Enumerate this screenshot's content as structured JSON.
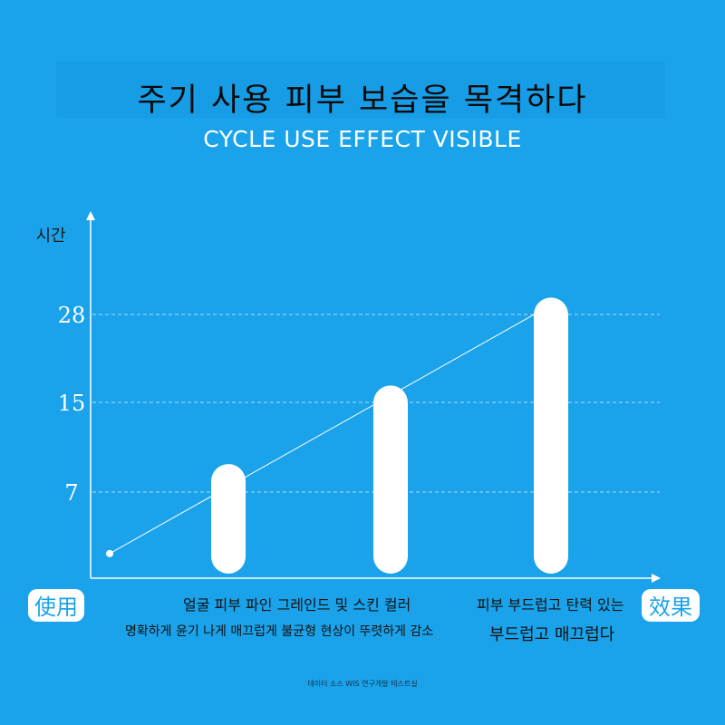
{
  "header": {
    "title": "주기 사용 피부 보습을 목격하다",
    "subtitle": "CYCLE USE EFFECT VISIBLE"
  },
  "chart_data": {
    "type": "bar",
    "ylabel": "시간",
    "xlabel_left": "使用",
    "xlabel_right": "效果",
    "y_ticks": [
      7,
      15,
      28
    ],
    "bars": [
      {
        "value": 9.5
      },
      {
        "value": 17.5
      },
      {
        "value": 30.5
      }
    ],
    "trend_line": [
      {
        "x": 0,
        "y": 2
      },
      {
        "x": 3,
        "y": 28.5
      }
    ],
    "grid": "dashed-horizontal",
    "colors": {
      "bar": "#ffffff",
      "axis": "#ffffff",
      "grid": "#a8dcf8"
    }
  },
  "captions": {
    "left_line1": "얼굴 피부 파인 그레인드 및 스킨 컬러",
    "left_line2": "명확하게 윤기 나게 매끄럽게 불균형 현상이 뚜렷하게 감소",
    "right_line1": "피부 부드럽고 탄력 있는",
    "right_line2": "부드럽고 매끄럽다"
  },
  "footer": {
    "note": "데이터 소스 WIS 연구개발 테스트실"
  }
}
